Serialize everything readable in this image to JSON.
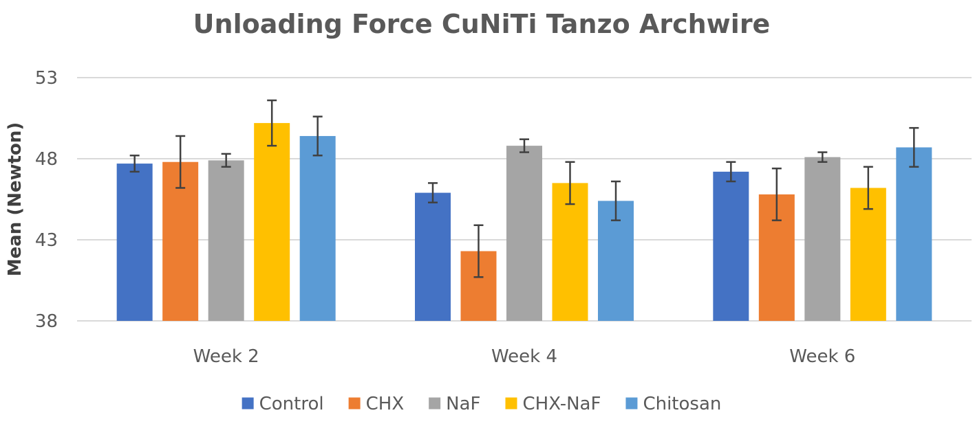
{
  "chart_data": {
    "type": "bar",
    "title": "Unloading Force CuNiTi Tanzo Archwire",
    "xlabel": "",
    "ylabel": "Mean  (Newton)",
    "ylim": [
      38,
      53
    ],
    "yticks": [
      38,
      43,
      48,
      53
    ],
    "grid": true,
    "legend_position": "bottom",
    "categories": [
      "Week 2",
      "Week 4",
      "Week 6"
    ],
    "series": [
      {
        "name": "Control",
        "color": "#4472c4",
        "values": [
          47.7,
          45.9,
          47.2
        ],
        "errors": [
          0.5,
          0.6,
          0.6
        ]
      },
      {
        "name": "CHX",
        "color": "#ed7d31",
        "values": [
          47.8,
          42.3,
          45.8
        ],
        "errors": [
          1.6,
          1.6,
          1.6
        ]
      },
      {
        "name": "NaF",
        "color": "#a5a5a5",
        "values": [
          47.9,
          48.8,
          48.1
        ],
        "errors": [
          0.4,
          0.4,
          0.3
        ]
      },
      {
        "name": "CHX-NaF",
        "color": "#ffc000",
        "values": [
          50.2,
          46.5,
          46.2
        ],
        "errors": [
          1.4,
          1.3,
          1.3
        ]
      },
      {
        "name": "Chitosan",
        "color": "#5b9bd5",
        "values": [
          49.4,
          45.4,
          48.7
        ],
        "errors": [
          1.2,
          1.2,
          1.2
        ]
      }
    ]
  }
}
